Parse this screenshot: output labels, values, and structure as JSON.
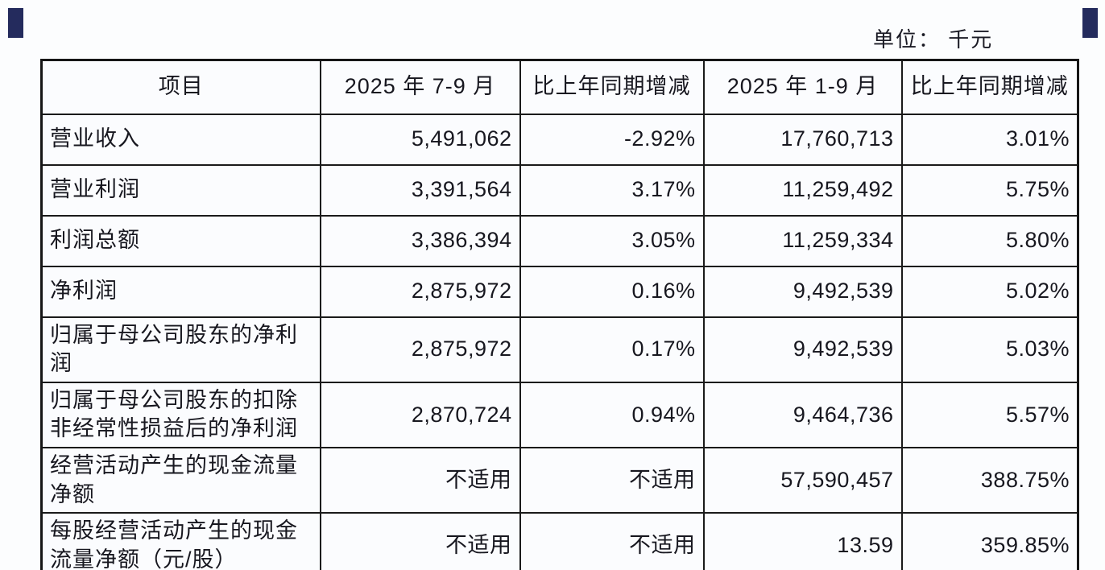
{
  "page": {
    "unit_label": "单位： 千元"
  },
  "decor": {
    "edge_bar_color": "#242b5d"
  },
  "table": {
    "columns": [
      "项目",
      "2025 年 7-9 月",
      "比上年同期增减",
      "2025 年 1-9 月",
      "比上年同期增减"
    ],
    "rows": [
      {
        "cells": [
          "营业收入",
          "5,491,062",
          "-2.92%",
          "17,760,713",
          "3.01%"
        ]
      },
      {
        "cells": [
          "营业利润",
          "3,391,564",
          "3.17%",
          "11,259,492",
          "5.75%"
        ]
      },
      {
        "cells": [
          "利润总额",
          "3,386,394",
          "3.05%",
          "11,259,334",
          "5.80%"
        ]
      },
      {
        "cells": [
          "净利润",
          "2,875,972",
          "0.16%",
          "9,492,539",
          "5.02%"
        ]
      },
      {
        "cells": [
          "归属于母公司股东的净利润",
          "2,875,972",
          "0.17%",
          "9,492,539",
          "5.03%"
        ]
      },
      {
        "cells": [
          "归属于母公司股东的扣除非经常性损益后的净利润",
          "2,870,724",
          "0.94%",
          "9,464,736",
          "5.57%"
        ]
      },
      {
        "cells": [
          "经营活动产生的现金流量净额",
          "不适用",
          "不适用",
          "57,590,457",
          "388.75%"
        ]
      },
      {
        "cells": [
          "每股经营活动产生的现金流量净额（元/股）",
          "不适用",
          "不适用",
          "13.59",
          "359.85%"
        ]
      }
    ]
  }
}
